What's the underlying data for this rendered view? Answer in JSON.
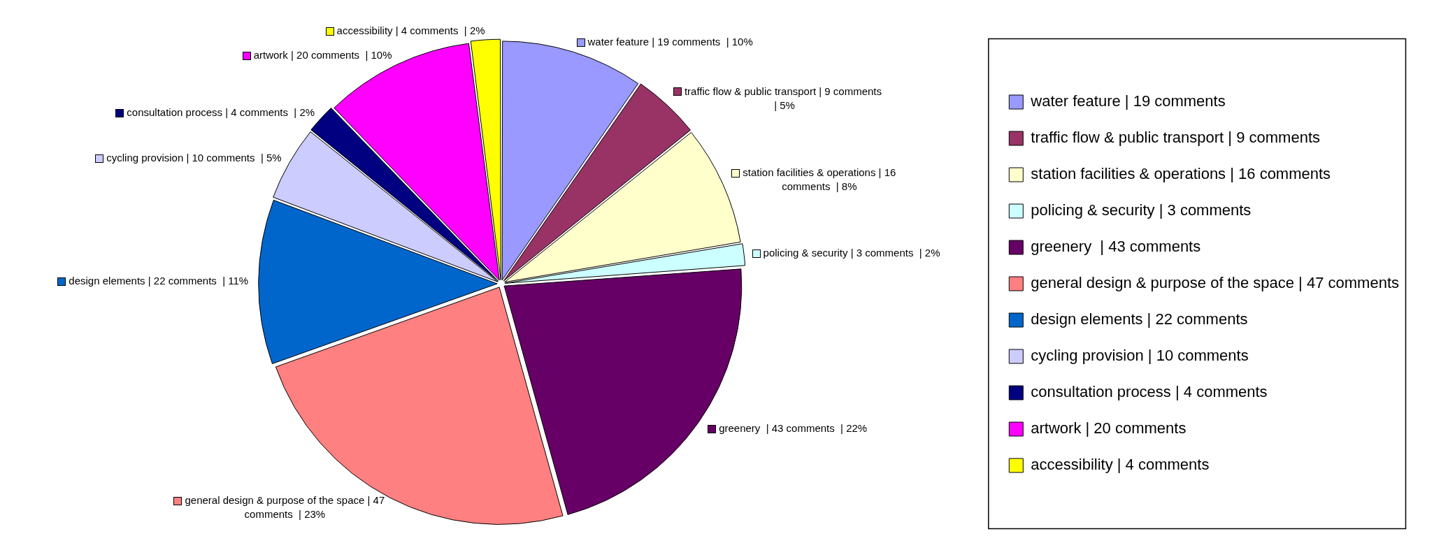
{
  "chart_data": {
    "type": "pie",
    "categories": [
      "water feature | 19 comments",
      "traffic flow & public transport | 9 comments",
      "station facilities & operations | 16 comments",
      "policing & security | 3 comments",
      "greenery  | 43 comments",
      "general design & purpose of the space | 47 comments",
      "design elements | 22 comments",
      "cycling provision | 10 comments",
      "consultation process | 4 comments",
      "artwork | 20 comments",
      "accessibility | 4 comments"
    ],
    "values": [
      19,
      9,
      16,
      3,
      43,
      47,
      22,
      10,
      4,
      20,
      4
    ],
    "colors": [
      "#9999ff",
      "#993366",
      "#ffffcc",
      "#ccffff",
      "#660066",
      "#ff8080",
      "#0066cc",
      "#ccccff",
      "#000080",
      "#ff00ff",
      "#ffff00"
    ],
    "value_labels": [
      "water feature | 19 comments  | 10%",
      "traffic flow & public transport | 9 comments  | 5%",
      "station facilities & operations | 16 comments  | 8%",
      "policing & security | 3 comments  | 2%",
      "greenery  | 43 comments  | 22%",
      "general design & purpose of the space | 47 comments  | 23%",
      "design elements | 22 comments  | 11%",
      "cycling provision | 10 comments  | 5%",
      "consultation process | 4 comments  | 2%",
      "artwork | 20 comments  | 10%",
      "accessibility | 4 comments  | 2%"
    ],
    "legend": "right"
  }
}
